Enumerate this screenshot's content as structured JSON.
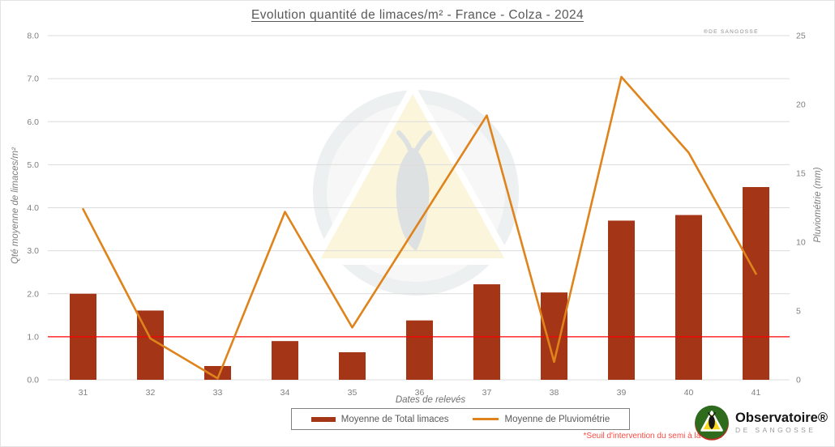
{
  "page": {
    "title": "Evolution quantité de limaces/m² - France - Colza - 2024",
    "copyright": "®DE SANGOSSE"
  },
  "chart_data": {
    "type": "bar",
    "subtype": "combo-bar-line",
    "categories": [
      "31",
      "32",
      "33",
      "34",
      "35",
      "36",
      "37",
      "38",
      "39",
      "40",
      "41"
    ],
    "series": [
      {
        "name": "Moyenne de Total limaces",
        "type": "bar",
        "axis": "left",
        "color": "#a43517",
        "values": [
          2.0,
          1.61,
          0.32,
          0.9,
          0.64,
          1.38,
          2.22,
          2.03,
          3.7,
          3.83,
          4.48
        ]
      },
      {
        "name": "Moyenne de Pluviométrie",
        "type": "line",
        "axis": "right",
        "color": "#df831b",
        "values": [
          12.4,
          3.0,
          0.1,
          12.2,
          3.8,
          11.5,
          19.2,
          1.3,
          22.0,
          16.5,
          7.7
        ]
      }
    ],
    "title": "Evolution quantité de limaces/m² - France - Colza - 2024",
    "xlabel": "Dates de relevés",
    "ylabel_left": "Qté moyenne de limaces/m²",
    "ylabel_right": "Pluviométrie (mm)",
    "ylim_left": [
      0,
      8
    ],
    "ylim_right": [
      0,
      25
    ],
    "yticks_left": [
      "0.0",
      "1.0",
      "2.0",
      "3.0",
      "4.0",
      "5.0",
      "6.0",
      "7.0",
      "8.0"
    ],
    "yticks_right": [
      "0",
      "5",
      "10",
      "15",
      "20",
      "25"
    ],
    "grid": true,
    "legend_position": "bottom",
    "threshold": {
      "value": 1.0,
      "axis": "left",
      "color": "#ff0000",
      "label": "*Seuil d'intervention du semi à la levée"
    }
  },
  "legend": {
    "items": [
      {
        "label": "Moyenne de Total limaces",
        "color": "#a43517",
        "swatch": "bar"
      },
      {
        "label": "Moyenne de Pluviométrie",
        "color": "#df831b",
        "swatch": "line"
      }
    ]
  },
  "footnote": "*Seuil d'intervention du semi à la levée",
  "logo": {
    "name": "Observatoire®",
    "subname": "DE SANGOSSE",
    "icon": "slug-triangle-icon"
  }
}
